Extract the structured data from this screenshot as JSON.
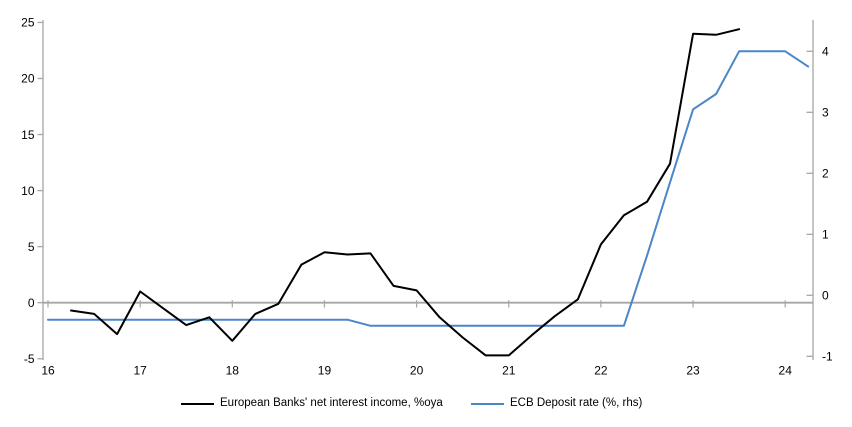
{
  "chart_data": {
    "type": "line",
    "title": "",
    "legend_position": "bottom",
    "grid": "zero-line-only",
    "background_color": "#ffffff",
    "axis_color": "#a6a6a6",
    "gridline_color": "#a6a6a6",
    "text_color": "#000000",
    "x_axis": {
      "tick_labels": [
        "16",
        "17",
        "18",
        "19",
        "20",
        "21",
        "22",
        "23",
        "24"
      ],
      "tick_years": [
        16,
        17,
        18,
        19,
        20,
        21,
        22,
        23,
        24
      ]
    },
    "y_left": {
      "ticks": [
        -5,
        0,
        5,
        10,
        15,
        20,
        25
      ],
      "range": [
        -5,
        25
      ]
    },
    "y_right": {
      "ticks": [
        -1,
        0,
        1,
        2,
        3,
        4
      ],
      "range": [
        -1,
        4.3
      ]
    },
    "series": [
      {
        "name": "European Banks' net interest income, %oya",
        "color": "#000000",
        "axis": "left",
        "x": [
          16.25,
          16.5,
          16.75,
          17.0,
          17.25,
          17.5,
          17.75,
          18.0,
          18.25,
          18.5,
          18.75,
          19.0,
          19.25,
          19.5,
          19.75,
          20.0,
          20.25,
          20.5,
          20.75,
          21.0,
          21.25,
          21.5,
          21.75,
          22.0,
          22.25,
          22.5,
          22.75,
          23.0,
          23.25,
          23.5
        ],
        "values": [
          -0.7,
          -1.0,
          -2.8,
          1.0,
          -0.5,
          -2.0,
          -1.3,
          -3.4,
          -1.0,
          -0.1,
          3.4,
          4.5,
          4.3,
          4.4,
          1.5,
          1.1,
          -1.3,
          -3.1,
          -4.7,
          -4.7,
          -2.9,
          -1.2,
          0.3,
          5.2,
          7.8,
          9.0,
          12.4,
          24.0,
          23.9,
          24.4
        ]
      },
      {
        "name": "ECB Deposit rate (%, rhs)",
        "color": "#4a86c8",
        "axis": "right",
        "x": [
          16.0,
          16.25,
          16.5,
          16.75,
          17.0,
          17.25,
          17.5,
          17.75,
          18.0,
          18.25,
          18.5,
          18.75,
          19.0,
          19.25,
          19.5,
          19.75,
          20.0,
          20.25,
          20.5,
          20.75,
          21.0,
          21.25,
          21.5,
          21.75,
          22.0,
          22.25,
          22.5,
          22.75,
          23.0,
          23.25,
          23.5,
          23.75,
          24.0,
          24.25
        ],
        "values": [
          -0.4,
          -0.4,
          -0.4,
          -0.4,
          -0.4,
          -0.4,
          -0.4,
          -0.4,
          -0.4,
          -0.4,
          -0.4,
          -0.4,
          -0.4,
          -0.4,
          -0.5,
          -0.5,
          -0.5,
          -0.5,
          -0.5,
          -0.5,
          -0.5,
          -0.5,
          -0.5,
          -0.5,
          -0.5,
          -0.5,
          0.65,
          1.85,
          3.05,
          3.3,
          4.0,
          4.0,
          4.0,
          3.75
        ]
      }
    ]
  }
}
